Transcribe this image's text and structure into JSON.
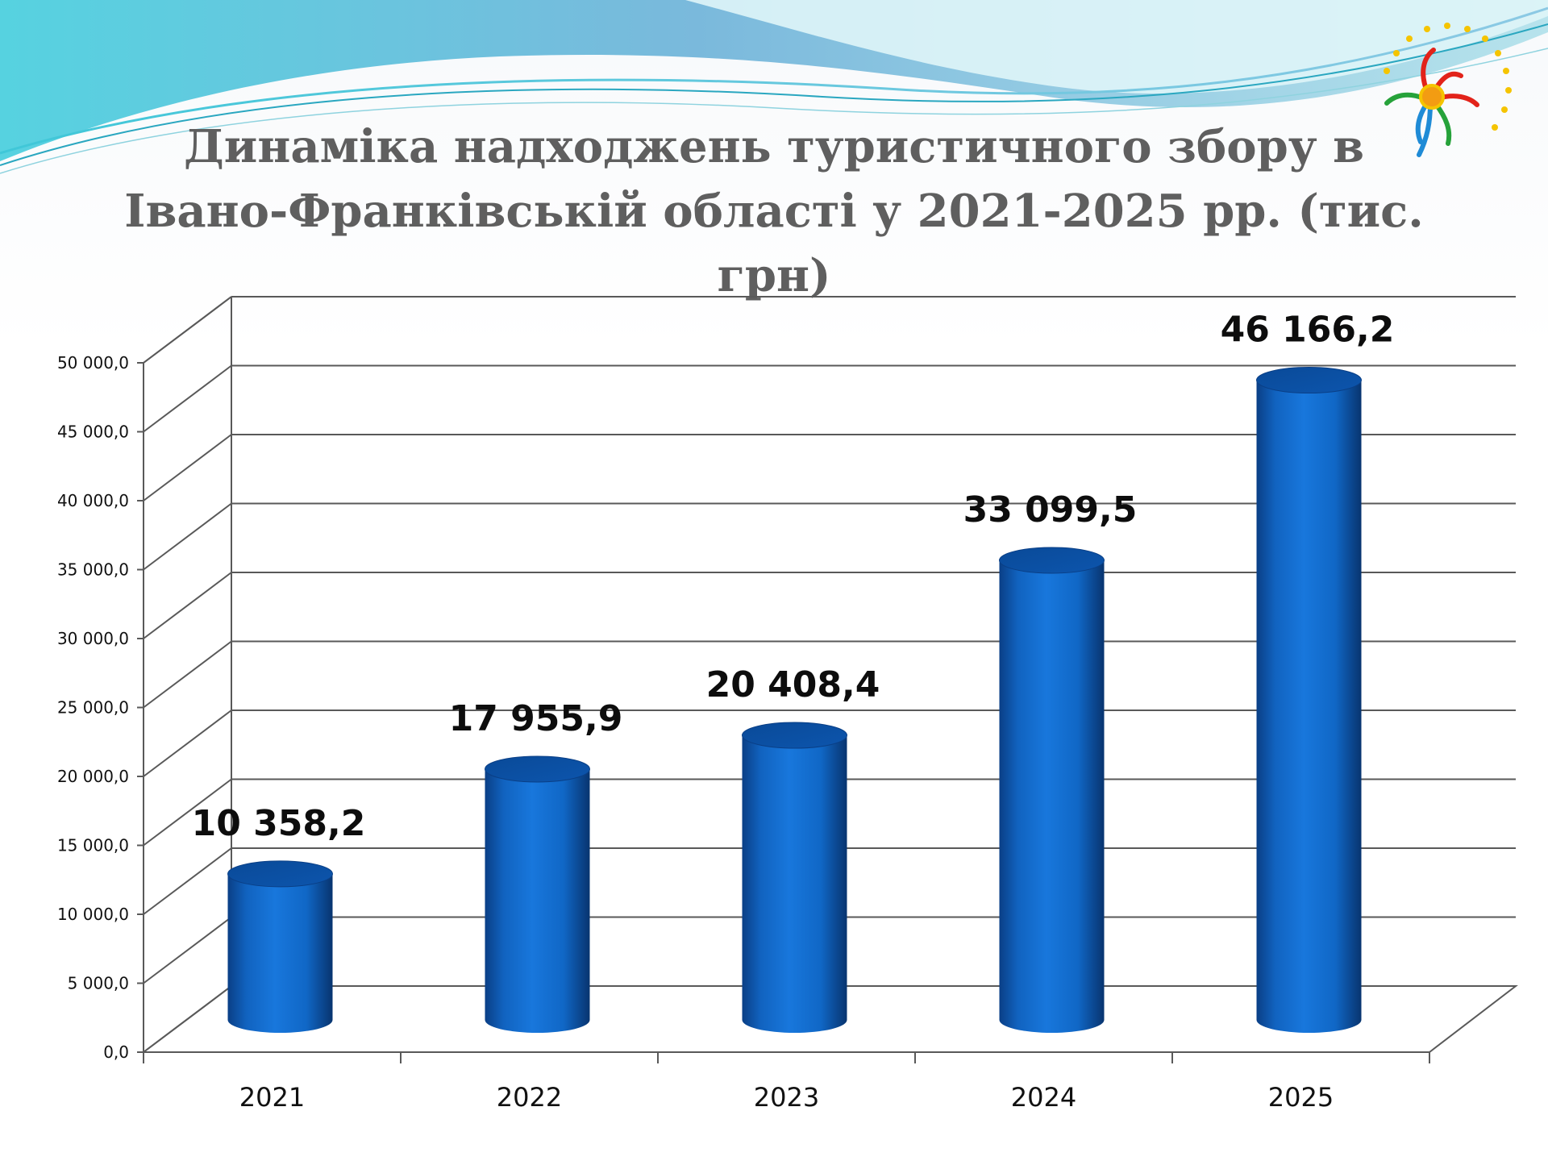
{
  "title": {
    "line1": "Динаміка надходжень туристичного збору в",
    "line2": "Івано-Франківській області у 2021-2025 рр. (тис. грн)"
  },
  "colors": {
    "bar": "#1270cf",
    "bar_dark": "#0a3f86",
    "grid": "#595959",
    "title": "#5f5f5f"
  },
  "chart_data": {
    "type": "bar",
    "categories": [
      "2021",
      "2022",
      "2023",
      "2024",
      "2025"
    ],
    "values": [
      10358.2,
      17955.9,
      20408.4,
      33099.5,
      46166.2
    ],
    "data_labels": [
      "10 358,2",
      "17 955,9",
      "20 408,4",
      "33 099,5",
      "46 166,2"
    ],
    "yticks": [
      0,
      5000,
      10000,
      15000,
      20000,
      25000,
      30000,
      35000,
      40000,
      45000,
      50000
    ],
    "ytick_labels": [
      "0,0",
      "5 000,0",
      "10 000,0",
      "15 000,0",
      "20 000,0",
      "25 000,0",
      "30 000,0",
      "35 000,0",
      "40 000,0",
      "45 000,0",
      "50 000,0"
    ],
    "ylim": [
      0,
      50000
    ],
    "grid": true,
    "style": "3d-cylinder",
    "legend": "none"
  }
}
